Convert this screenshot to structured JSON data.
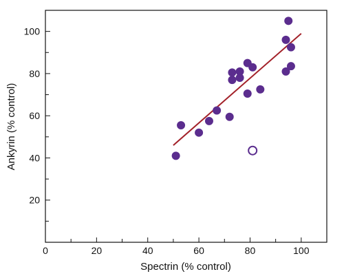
{
  "chart_data": {
    "type": "scatter",
    "xlabel": "Spectrin (% control)",
    "ylabel": "Ankyrin (% control)",
    "xlim": [
      0,
      110
    ],
    "ylim": [
      0,
      110
    ],
    "x_ticks": [
      0,
      20,
      40,
      60,
      80,
      100
    ],
    "y_ticks": [
      20,
      40,
      60,
      80,
      100
    ],
    "x_tick_labels": [
      "0",
      "20",
      "40",
      "60",
      "80",
      "100"
    ],
    "y_tick_labels": [
      "20",
      "40",
      "60",
      "80",
      "100"
    ],
    "grid": false,
    "legend": "none",
    "series": [
      {
        "marker": "filled-circle",
        "color": "#5b2d8e",
        "points": [
          {
            "x": 51,
            "y": 41
          },
          {
            "x": 53,
            "y": 55.5
          },
          {
            "x": 60,
            "y": 52
          },
          {
            "x": 64,
            "y": 57.5
          },
          {
            "x": 67,
            "y": 62.5
          },
          {
            "x": 72,
            "y": 59.5
          },
          {
            "x": 73,
            "y": 80.5
          },
          {
            "x": 73,
            "y": 77
          },
          {
            "x": 76,
            "y": 81
          },
          {
            "x": 76,
            "y": 78
          },
          {
            "x": 79,
            "y": 85
          },
          {
            "x": 79,
            "y": 70.5
          },
          {
            "x": 81,
            "y": 83
          },
          {
            "x": 84,
            "y": 72.5
          },
          {
            "x": 94,
            "y": 96
          },
          {
            "x": 94,
            "y": 81
          },
          {
            "x": 95,
            "y": 105
          },
          {
            "x": 96,
            "y": 83.5
          },
          {
            "x": 96,
            "y": 92.5
          }
        ]
      },
      {
        "marker": "open-circle",
        "color": "#5b2d8e",
        "points": [
          {
            "x": 81,
            "y": 43.5
          }
        ]
      }
    ],
    "trend_line": {
      "color": "#a3222a",
      "start": {
        "x": 50,
        "y": 46
      },
      "end": {
        "x": 100,
        "y": 99
      }
    }
  }
}
